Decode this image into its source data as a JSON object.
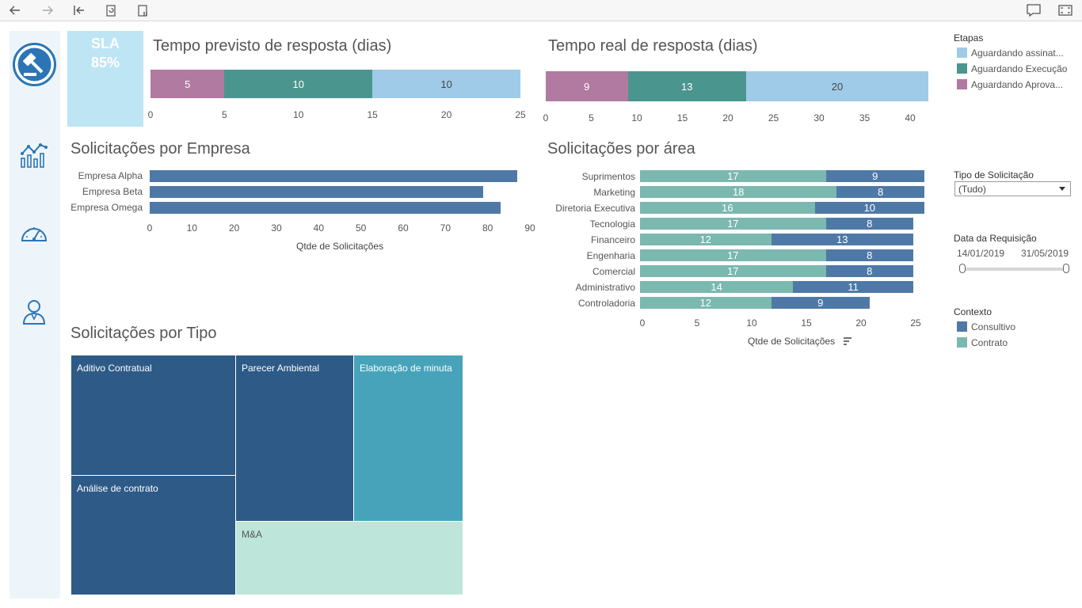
{
  "colors": {
    "pink": "#b07aa1",
    "teal": "#4b958f",
    "lightblue": "#a0cbe8",
    "blue": "#4e79a7",
    "contrato": "#7bb8af",
    "navy": "#2e5a87",
    "cyan": "#47a3ba",
    "mint": "#bde5d9"
  },
  "toolbar": {
    "icons": [
      "back-icon",
      "forward-icon",
      "first-page-icon",
      "refresh-icon",
      "pause-icon",
      "comment-icon",
      "fullscreen-icon"
    ]
  },
  "sla": {
    "label": "SLA",
    "value": "85%"
  },
  "previsto": {
    "title": "Tempo previsto de resposta (dias)",
    "segments": [
      {
        "value": 5,
        "label": "5"
      },
      {
        "value": 10,
        "label": "10"
      },
      {
        "value": 10,
        "label": "10"
      }
    ],
    "ticks": [
      "0",
      "5",
      "10",
      "15",
      "20",
      "25"
    ]
  },
  "real": {
    "title": "Tempo real de resposta (dias)",
    "segments": [
      {
        "value": 9,
        "label": "9"
      },
      {
        "value": 13,
        "label": "13"
      },
      {
        "value": 20,
        "label": "20"
      }
    ],
    "ticks": [
      "0",
      "5",
      "10",
      "15",
      "20",
      "25",
      "30",
      "35",
      "40"
    ]
  },
  "empresa": {
    "title": "Solicitações por Empresa",
    "categories": [
      "Empresa Alpha",
      "Empresa Beta",
      "Empresa Omega"
    ],
    "values": [
      87,
      79,
      83
    ],
    "ticks": [
      "0",
      "10",
      "20",
      "30",
      "40",
      "50",
      "60",
      "70",
      "80",
      "90"
    ],
    "xlabel": "Qtde de Solicitações"
  },
  "area": {
    "title": "Solicitações por área",
    "categories": [
      "Suprimentos",
      "Marketing",
      "Diretoria Executiva",
      "Tecnologia",
      "Financeiro",
      "Engenharia",
      "Comercial",
      "Administrativo",
      "Controladoria"
    ],
    "contrato": [
      17,
      18,
      16,
      17,
      12,
      17,
      17,
      14,
      12
    ],
    "consultivo": [
      9,
      8,
      10,
      8,
      13,
      8,
      8,
      11,
      9
    ],
    "contrato_labels": [
      "17",
      "18",
      "16",
      "17",
      "12",
      "17",
      "17",
      "14",
      "12"
    ],
    "consultivo_labels": [
      "9",
      "8",
      "10",
      "8",
      "13",
      "8",
      "8",
      "11",
      "9"
    ],
    "ticks": [
      "0",
      "5",
      "10",
      "15",
      "20",
      "25"
    ],
    "xlabel": "Qtde de Solicitações"
  },
  "tipo": {
    "title": "Solicitações por Tipo",
    "items": [
      "Aditivo Contratual",
      "Parecer Ambiental",
      "Elaboração de minuta",
      "Análise de contrato",
      "M&A"
    ]
  },
  "legend_etapas": {
    "title": "Etapas",
    "items": [
      "Aguardando assinat...",
      "Aguardando Execução",
      "Aguardando Aprova..."
    ]
  },
  "filter_tipo": {
    "title": "Tipo de Solicitação",
    "value": "(Tudo)"
  },
  "filter_data": {
    "title": "Data da Requisição",
    "start": "14/01/2019",
    "end": "31/05/2019"
  },
  "legend_contexto": {
    "title": "Contexto",
    "items": [
      "Consultivo",
      "Contrato"
    ]
  },
  "chart_data": [
    {
      "type": "bar",
      "title": "Tempo previsto de resposta (dias)",
      "stacked": true,
      "categories": [
        ""
      ],
      "series": [
        {
          "name": "Aguardando Aprova...",
          "values": [
            5
          ]
        },
        {
          "name": "Aguardando Execução",
          "values": [
            10
          ]
        },
        {
          "name": "Aguardando assinat...",
          "values": [
            10
          ]
        }
      ],
      "xlim": [
        0,
        25
      ]
    },
    {
      "type": "bar",
      "title": "Tempo real de resposta (dias)",
      "stacked": true,
      "categories": [
        ""
      ],
      "series": [
        {
          "name": "Aguardando Aprova...",
          "values": [
            9
          ]
        },
        {
          "name": "Aguardando Execução",
          "values": [
            13
          ]
        },
        {
          "name": "Aguardando assinat...",
          "values": [
            20
          ]
        }
      ],
      "xlim": [
        0,
        42
      ]
    },
    {
      "type": "bar",
      "title": "Solicitações por Empresa",
      "categories": [
        "Empresa Alpha",
        "Empresa Beta",
        "Empresa Omega"
      ],
      "values": [
        87,
        79,
        83
      ],
      "xlabel": "Qtde de Solicitações",
      "xlim": [
        0,
        90
      ]
    },
    {
      "type": "bar",
      "title": "Solicitações por área",
      "stacked": true,
      "categories": [
        "Suprimentos",
        "Marketing",
        "Diretoria Executiva",
        "Tecnologia",
        "Financeiro",
        "Engenharia",
        "Comercial",
        "Administrativo",
        "Controladoria"
      ],
      "series": [
        {
          "name": "Contrato",
          "values": [
            17,
            18,
            16,
            17,
            12,
            17,
            17,
            14,
            12
          ]
        },
        {
          "name": "Consultivo",
          "values": [
            9,
            8,
            10,
            8,
            13,
            8,
            8,
            11,
            9
          ]
        }
      ],
      "xlabel": "Qtde de Solicitações",
      "xlim": [
        0,
        26
      ]
    }
  ]
}
